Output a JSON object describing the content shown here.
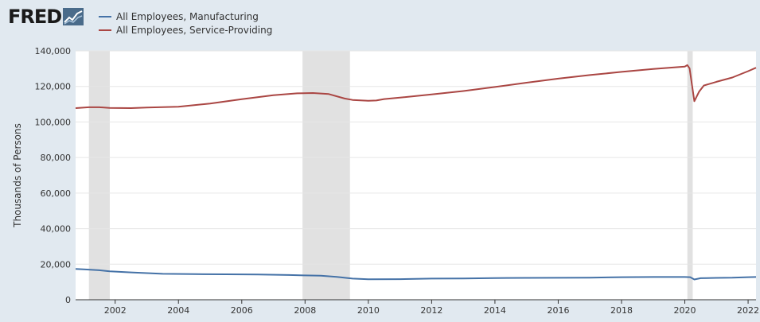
{
  "logo": {
    "text": "FRED",
    "icon": "fred-line-chart-icon"
  },
  "colors": {
    "manufacturing": "#4572a7",
    "services": "#aa4643",
    "recession": "#e1e1e1",
    "background": "#e1e9f0",
    "plot": "#ffffff",
    "grid": "#e6e6e6"
  },
  "chart_data": {
    "type": "line",
    "ylabel": "Thousands of Persons",
    "ylim": [
      0,
      140000
    ],
    "yticks": [
      0,
      20000,
      40000,
      60000,
      80000,
      100000,
      120000,
      140000
    ],
    "ytick_labels": [
      "0",
      "20,000",
      "40,000",
      "60,000",
      "80,000",
      "100,000",
      "120,000",
      "140,000"
    ],
    "xlim": [
      2000.75,
      2022.25
    ],
    "xticks": [
      2002,
      2004,
      2006,
      2008,
      2010,
      2012,
      2014,
      2016,
      2018,
      2020,
      2022
    ],
    "xtick_labels": [
      "2002",
      "2004",
      "2006",
      "2008",
      "2010",
      "2012",
      "2014",
      "2016",
      "2018",
      "2020",
      "2022"
    ],
    "grid": true,
    "legend_position": "top-left",
    "recessions": [
      [
        2001.17,
        2001.83
      ],
      [
        2007.92,
        2009.42
      ],
      [
        2020.08,
        2020.25
      ]
    ],
    "series": [
      {
        "name": "All Employees, Manufacturing",
        "x": [
          2000.75,
          2001.0,
          2001.5,
          2001.83,
          2002.5,
          2003.5,
          2004.5,
          2005.5,
          2006.5,
          2007.5,
          2008.0,
          2008.5,
          2009.0,
          2009.5,
          2010.0,
          2011.0,
          2012.0,
          2013.0,
          2014.0,
          2015.0,
          2016.0,
          2017.0,
          2018.0,
          2019.0,
          2020.0,
          2020.17,
          2020.3,
          2020.5,
          2021.0,
          2021.5,
          2022.0,
          2022.25
        ],
        "y": [
          17300,
          17100,
          16600,
          16000,
          15400,
          14600,
          14400,
          14300,
          14200,
          13900,
          13700,
          13500,
          12900,
          11900,
          11500,
          11600,
          11900,
          12000,
          12200,
          12300,
          12350,
          12400,
          12700,
          12800,
          12800,
          12700,
          11400,
          12100,
          12300,
          12400,
          12700,
          12800
        ]
      },
      {
        "name": "All Employees, Service-Providing",
        "x": [
          2000.75,
          2001.17,
          2001.5,
          2001.83,
          2002.5,
          2003.0,
          2004.0,
          2005.0,
          2006.0,
          2007.0,
          2007.75,
          2008.25,
          2008.75,
          2009.25,
          2009.5,
          2010.0,
          2010.25,
          2010.5,
          2011.0,
          2012.0,
          2013.0,
          2014.0,
          2015.0,
          2016.0,
          2017.0,
          2018.0,
          2019.0,
          2020.0,
          2020.08,
          2020.15,
          2020.3,
          2020.45,
          2020.6,
          2021.0,
          2021.5,
          2022.0,
          2022.25
        ],
        "y": [
          107800,
          108300,
          108300,
          107900,
          107800,
          108100,
          108600,
          110400,
          112800,
          115100,
          116100,
          116300,
          115700,
          113200,
          112400,
          111900,
          112100,
          112900,
          113700,
          115500,
          117400,
          119700,
          122100,
          124400,
          126400,
          128200,
          129800,
          131200,
          132000,
          130200,
          111700,
          117000,
          120500,
          122600,
          125000,
          128600,
          130500
        ]
      }
    ]
  }
}
